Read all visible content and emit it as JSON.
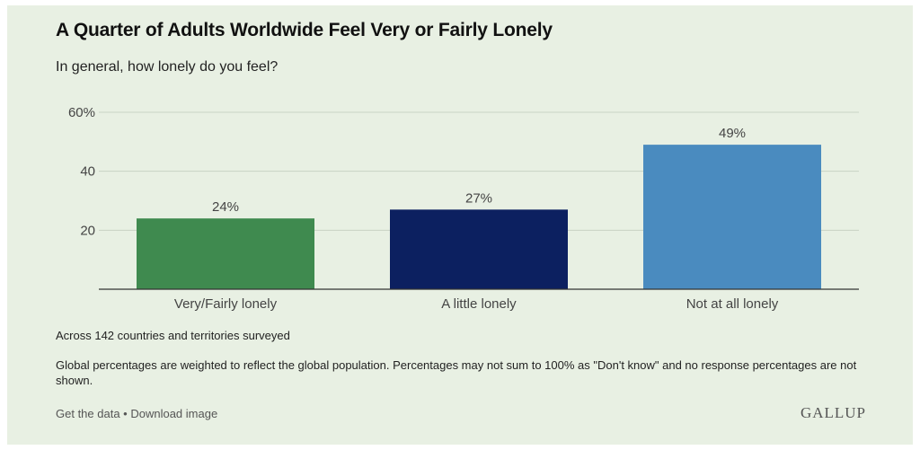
{
  "header": {
    "title": "A Quarter of Adults Worldwide Feel Very or Fairly Lonely",
    "subtitle": "In general, how lonely do you feel?"
  },
  "chart_data": {
    "type": "bar",
    "categories": [
      "Very/Fairly lonely",
      "A little lonely",
      "Not at all lonely"
    ],
    "values": [
      24,
      27,
      49
    ],
    "value_labels": [
      "24%",
      "27%",
      "49%"
    ],
    "colors": [
      "#3f8a4f",
      "#0c2060",
      "#4a8bbf"
    ],
    "ylim": [
      0,
      60
    ],
    "yticks": [
      20,
      40,
      60
    ],
    "ytick_labels": [
      "20",
      "40",
      "60%"
    ],
    "grid": true,
    "xlabel": "",
    "ylabel": ""
  },
  "notes": {
    "scope": "Across 142 countries and territories surveyed",
    "methodology": "Global percentages are weighted to reflect the global population. Percentages may not sum to 100% as \"Don't know\" and no response percentages are not shown."
  },
  "footer": {
    "get_data": "Get the data",
    "separator": " • ",
    "download": "Download image",
    "brand": "GALLUP"
  }
}
